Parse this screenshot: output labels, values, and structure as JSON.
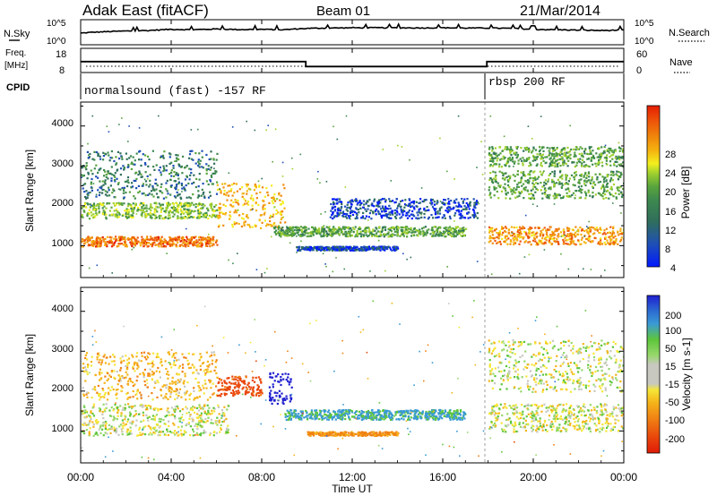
{
  "header": {
    "station": "Adak East (fitACF)",
    "beam": "Beam 01",
    "date": "21/Mar/2014"
  },
  "time_axis": {
    "label": "Time UT",
    "ticks": [
      "00:00",
      "04:00",
      "08:00",
      "12:00",
      "16:00",
      "20:00",
      "00:00"
    ],
    "range_hours": [
      0,
      24
    ]
  },
  "nsky_panel": {
    "label": "N.Sky",
    "left_ticks": [
      "10^5",
      "10^0"
    ],
    "right_ticks": [
      "10^5",
      "10^0"
    ],
    "right_label": "N.Search"
  },
  "freq_panel": {
    "label_line1": "Freq.",
    "label_line2": "[MHz]",
    "left_ticks": [
      "18",
      "8"
    ],
    "right_ticks": [
      "60",
      "0"
    ],
    "right_label": "Nave"
  },
  "cpid_panel": {
    "label": "CPID",
    "modes": [
      {
        "label": "normalsound (fast) -157 RF",
        "start_hour": 0,
        "end_hour": 17.9
      },
      {
        "label": "rbsp 200 RF",
        "start_hour": 17.9,
        "end_hour": 24
      }
    ]
  },
  "power_panel": {
    "ylabel": "Slant Range [km]",
    "yticks": [
      "1000",
      "2000",
      "3000",
      "4000"
    ],
    "colorbar_label": "Power [dB]",
    "colorbar_ticks": [
      "28",
      "24",
      "20",
      "16",
      "12",
      "8",
      "4"
    ],
    "colors": [
      "#0019ff",
      "#1f4fb7",
      "#2f6e5c",
      "#3e8a4e",
      "#5aa53c",
      "#9fd02e",
      "#f3ef1e",
      "#f5b40f",
      "#f08a0c",
      "#ee5609",
      "#e51e04"
    ]
  },
  "velocity_panel": {
    "ylabel": "Slant Range [km]",
    "yticks": [
      "1000",
      "2000",
      "3000",
      "4000"
    ],
    "colorbar_label": "Velocity [m s-1]",
    "colorbar_ticks": [
      "200",
      "100",
      "50",
      "15",
      "-15",
      "-50",
      "-100",
      "-200"
    ],
    "colors": [
      "#1f1fd0",
      "#2c6cd2",
      "#3a9ad4",
      "#5dc63b",
      "#97d76b",
      "#c8c8c0",
      "#f5e637",
      "#f5b419",
      "#f08214",
      "#e9460b",
      "#e01a08"
    ]
  },
  "chart_data": [
    {
      "type": "line",
      "title": "",
      "ylabel": "N.Sky",
      "yscale": "log",
      "ylim": [
        1,
        100000
      ],
      "x_hours": [
        0,
        1,
        2,
        3,
        4,
        5,
        6,
        7,
        8,
        9,
        10,
        11,
        12,
        13,
        14,
        15,
        16,
        17,
        18,
        19,
        20,
        21,
        22,
        23,
        24
      ],
      "values": [
        200,
        400,
        600,
        800,
        1500,
        1200,
        1800,
        1300,
        1500,
        1200,
        2500,
        3000,
        3500,
        3500,
        3500,
        3200,
        3500,
        3000,
        3000,
        2500,
        1500,
        1200,
        1000,
        800,
        1000
      ],
      "grid": false
    },
    {
      "type": "line",
      "ylabel": "Freq. [MHz]",
      "ylim": [
        8,
        18
      ],
      "x_hours": [
        0,
        9.95,
        9.95,
        17.95,
        17.95,
        24
      ],
      "series": [
        {
          "values": [
            12.5,
            12.5,
            10.3,
            10.3,
            12.5,
            12.5
          ]
        }
      ],
      "nave_range": [
        0,
        60
      ],
      "grid": false
    },
    {
      "type": "heatmap",
      "quantity": "Power [dB]",
      "xlim_hours": [
        0,
        24
      ],
      "ylim_km": [
        200,
        4600
      ],
      "color_range": [
        0,
        30
      ],
      "features": [
        {
          "from_hour": 0,
          "to_hour": 6,
          "range_km_start": 1000,
          "range_km_end": 1250,
          "power_db": 24
        },
        {
          "from_hour": 0,
          "to_hour": 6,
          "range_km_start": 1700,
          "range_km_end": 2100,
          "power_db": 14
        },
        {
          "from_hour": 0,
          "to_hour": 6,
          "range_km_start": 2200,
          "range_km_end": 3400,
          "power_db": 8
        },
        {
          "from_hour": 6,
          "to_hour": 9,
          "range_km_start": 1450,
          "range_km_end": 2600,
          "power_db": 20
        },
        {
          "from_hour": 8.5,
          "to_hour": 17,
          "range_km_start": 1250,
          "range_km_end": 1500,
          "power_db": 12
        },
        {
          "from_hour": 9.5,
          "to_hour": 14,
          "range_km_start": 900,
          "range_km_end": 1000,
          "power_db": 4
        },
        {
          "from_hour": 11,
          "to_hour": 17.5,
          "range_km_start": 1700,
          "range_km_end": 2200,
          "power_db": 4
        },
        {
          "from_hour": 18,
          "to_hour": 24,
          "range_km_start": 1500,
          "range_km_end": 1050,
          "power_db": 22
        },
        {
          "from_hour": 18,
          "to_hour": 24,
          "range_km_start": 2900,
          "range_km_end": 2200,
          "power_db": 12
        },
        {
          "from_hour": 18,
          "to_hour": 24,
          "range_km_start": 3500,
          "range_km_end": 3000,
          "power_db": 12
        }
      ]
    },
    {
      "type": "heatmap",
      "quantity": "Velocity [m s-1]",
      "xlim_hours": [
        0,
        24
      ],
      "ylim_km": [
        200,
        4600
      ],
      "color_range": [
        -200,
        200
      ],
      "features": [
        {
          "from_hour": 0,
          "to_hour": 6.5,
          "range_km_start": 900,
          "range_km_end": 1700,
          "velocity": 0
        },
        {
          "from_hour": 0,
          "to_hour": 6,
          "range_km_start": 1800,
          "range_km_end": 3000,
          "velocity": -30
        },
        {
          "from_hour": 6,
          "to_hour": 8,
          "range_km_start": 1900,
          "range_km_end": 2400,
          "velocity": -120
        },
        {
          "from_hour": 8.3,
          "to_hour": 9.3,
          "range_km_start": 1700,
          "range_km_end": 2500,
          "velocity": 200
        },
        {
          "from_hour": 9,
          "to_hour": 17,
          "range_km_start": 1300,
          "range_km_end": 1550,
          "velocity": 60
        },
        {
          "from_hour": 10,
          "to_hour": 14,
          "range_km_start": 900,
          "range_km_end": 1000,
          "velocity": -60
        },
        {
          "from_hour": 18,
          "to_hour": 24,
          "range_km_start": 1000,
          "range_km_end": 1700,
          "velocity": 0
        },
        {
          "from_hour": 18,
          "to_hour": 24,
          "range_km_start": 2000,
          "range_km_end": 3300,
          "velocity": 0
        }
      ]
    }
  ]
}
